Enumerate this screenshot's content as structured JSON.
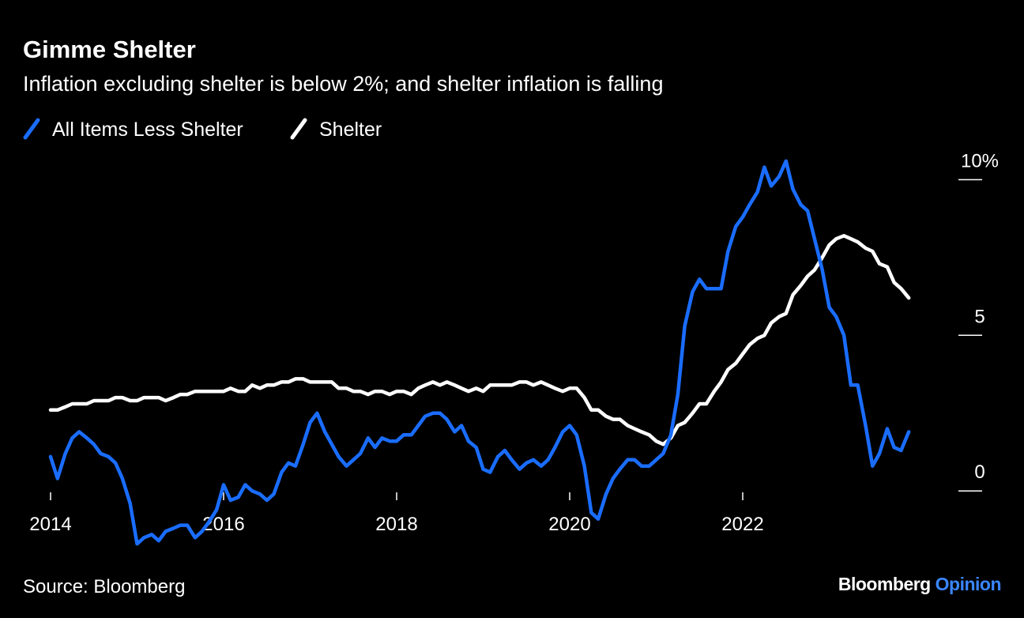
{
  "chart_data": {
    "type": "line",
    "title": "Gimme Shelter",
    "subtitle": "Inflation excluding shelter is below 2%; and shelter inflation is falling",
    "source": "Source: Bloomberg",
    "brand": [
      "Bloomberg",
      "Opinion"
    ],
    "x": [
      2014.0,
      2014.08,
      2014.17,
      2014.25,
      2014.33,
      2014.42,
      2014.5,
      2014.58,
      2014.67,
      2014.75,
      2014.83,
      2014.92,
      2015.0,
      2015.08,
      2015.17,
      2015.25,
      2015.33,
      2015.42,
      2015.5,
      2015.58,
      2015.67,
      2015.75,
      2015.83,
      2015.92,
      2016.0,
      2016.08,
      2016.17,
      2016.25,
      2016.33,
      2016.42,
      2016.5,
      2016.58,
      2016.67,
      2016.75,
      2016.83,
      2016.92,
      2017.0,
      2017.08,
      2017.17,
      2017.25,
      2017.33,
      2017.42,
      2017.5,
      2017.58,
      2017.67,
      2017.75,
      2017.83,
      2017.92,
      2018.0,
      2018.08,
      2018.17,
      2018.25,
      2018.33,
      2018.42,
      2018.5,
      2018.58,
      2018.67,
      2018.75,
      2018.83,
      2018.92,
      2019.0,
      2019.08,
      2019.17,
      2019.25,
      2019.33,
      2019.42,
      2019.5,
      2019.58,
      2019.67,
      2019.75,
      2019.83,
      2019.92,
      2020.0,
      2020.08,
      2020.17,
      2020.25,
      2020.33,
      2020.42,
      2020.5,
      2020.58,
      2020.67,
      2020.75,
      2020.83,
      2020.92,
      2021.0,
      2021.08,
      2021.17,
      2021.25,
      2021.33,
      2021.42,
      2021.5,
      2021.58,
      2021.67,
      2021.75,
      2021.83,
      2021.92,
      2022.0,
      2022.08,
      2022.17,
      2022.25,
      2022.33,
      2022.42,
      2022.5,
      2022.58,
      2022.67,
      2022.75,
      2022.83,
      2022.92,
      2023.0,
      2023.08,
      2023.17,
      2023.25,
      2023.33,
      2023.42,
      2023.5,
      2023.58,
      2023.67,
      2023.75,
      2023.83,
      2023.92
    ],
    "series": [
      {
        "name": "All Items Less Shelter",
        "color": "#1a6dff",
        "values": [
          1.1,
          0.4,
          1.2,
          1.7,
          1.9,
          1.7,
          1.5,
          1.2,
          1.1,
          0.9,
          0.4,
          -0.4,
          -1.7,
          -1.5,
          -1.4,
          -1.6,
          -1.3,
          -1.2,
          -1.1,
          -1.1,
          -1.5,
          -1.3,
          -1.0,
          -0.6,
          0.2,
          -0.3,
          -0.2,
          0.2,
          0,
          -0.1,
          -0.3,
          -0.1,
          0.6,
          0.9,
          0.8,
          1.5,
          2.2,
          2.5,
          1.9,
          1.5,
          1.1,
          0.8,
          1.0,
          1.2,
          1.7,
          1.4,
          1.7,
          1.6,
          1.6,
          1.8,
          1.8,
          2.1,
          2.4,
          2.5,
          2.5,
          2.3,
          1.9,
          2.1,
          1.6,
          1.4,
          0.7,
          0.6,
          1.1,
          1.3,
          1.0,
          0.7,
          0.9,
          1.0,
          0.8,
          1.0,
          1.4,
          1.9,
          2.1,
          1.8,
          0.8,
          -0.7,
          -0.9,
          -0.1,
          0.4,
          0.7,
          1.0,
          1.0,
          0.8,
          0.8,
          1.0,
          1.2,
          1.8,
          3.1,
          5.3,
          6.4,
          6.8,
          6.5,
          6.5,
          6.5,
          7.7,
          8.5,
          8.8,
          9.2,
          9.6,
          10.4,
          9.8,
          10.1,
          10.6,
          9.7,
          9.2,
          9.0,
          8.1,
          7.1,
          5.9,
          5.6,
          5.0,
          3.4,
          3.4,
          2.1,
          0.8,
          1.2,
          2.0,
          1.4,
          1.3,
          1.9
        ]
      },
      {
        "name": "Shelter",
        "color": "#ffffff",
        "values": [
          2.6,
          2.6,
          2.7,
          2.8,
          2.8,
          2.8,
          2.9,
          2.9,
          2.9,
          3.0,
          3.0,
          2.9,
          2.9,
          3.0,
          3.0,
          3.0,
          2.9,
          3.0,
          3.1,
          3.1,
          3.2,
          3.2,
          3.2,
          3.2,
          3.2,
          3.3,
          3.2,
          3.2,
          3.4,
          3.3,
          3.4,
          3.4,
          3.5,
          3.5,
          3.6,
          3.6,
          3.5,
          3.5,
          3.5,
          3.5,
          3.3,
          3.3,
          3.2,
          3.2,
          3.1,
          3.2,
          3.2,
          3.1,
          3.2,
          3.2,
          3.1,
          3.3,
          3.4,
          3.5,
          3.4,
          3.5,
          3.4,
          3.3,
          3.2,
          3.3,
          3.2,
          3.4,
          3.4,
          3.4,
          3.4,
          3.5,
          3.5,
          3.4,
          3.5,
          3.4,
          3.3,
          3.2,
          3.3,
          3.3,
          3.0,
          2.6,
          2.6,
          2.4,
          2.3,
          2.3,
          2.1,
          2.0,
          1.9,
          1.8,
          1.6,
          1.5,
          1.7,
          2.1,
          2.2,
          2.5,
          2.8,
          2.8,
          3.2,
          3.5,
          3.9,
          4.1,
          4.4,
          4.7,
          4.9,
          5.0,
          5.4,
          5.6,
          5.7,
          6.3,
          6.6,
          6.9,
          7.1,
          7.5,
          7.9,
          8.1,
          8.2,
          8.1,
          8.0,
          7.8,
          7.7,
          7.3,
          7.2,
          6.7,
          6.5,
          6.2
        ]
      }
    ],
    "xlim": [
      2014,
      2024
    ],
    "xticks": [
      2014,
      2016,
      2018,
      2020,
      2022
    ],
    "ylim": [
      -2,
      11
    ],
    "yticks": [
      0,
      5,
      {
        "value": 10,
        "label": "10%"
      }
    ],
    "y_axis_side": "right",
    "grid": false
  }
}
